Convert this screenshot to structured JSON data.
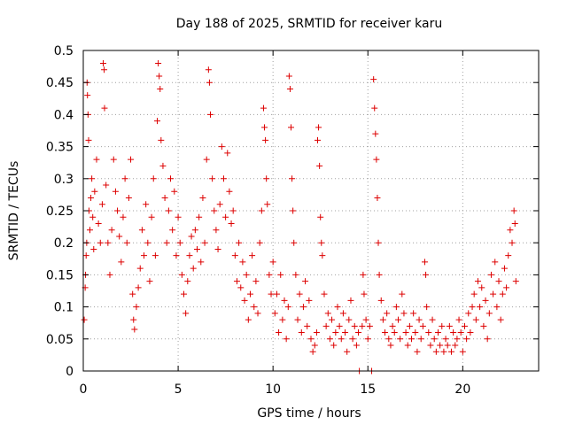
{
  "chart_data": {
    "type": "scatter",
    "title": "Day 188 of 2025, SRMTID for receiver karu",
    "xlabel": "GPS time / hours",
    "ylabel": "SRMTID / TECUs",
    "xlim": [
      0,
      24
    ],
    "ylim": [
      0,
      0.5
    ],
    "xticks": [
      0,
      5,
      10,
      15,
      20
    ],
    "yticks": [
      0,
      0.05,
      0.1,
      0.15,
      0.2,
      0.25,
      0.3,
      0.35,
      0.4,
      0.45,
      0.5
    ],
    "xtick_labels": [
      "0",
      "5",
      "10",
      "15",
      "20"
    ],
    "ytick_labels": [
      "0",
      "0.05",
      "0.1",
      "0.15",
      "0.2",
      "0.25",
      "0.3",
      "0.35",
      "0.4",
      "0.45",
      "0.5"
    ],
    "grid": true,
    "marker": "+",
    "color": "#dd0000",
    "series": [
      {
        "name": "SRMTID",
        "points": [
          [
            0.05,
            0.08
          ],
          [
            0.1,
            0.13
          ],
          [
            0.12,
            0.15
          ],
          [
            0.15,
            0.18
          ],
          [
            0.18,
            0.2
          ],
          [
            0.2,
            0.45
          ],
          [
            0.22,
            0.43
          ],
          [
            0.25,
            0.4
          ],
          [
            0.28,
            0.36
          ],
          [
            0.3,
            0.25
          ],
          [
            0.35,
            0.22
          ],
          [
            0.4,
            0.27
          ],
          [
            0.45,
            0.3
          ],
          [
            0.5,
            0.24
          ],
          [
            0.55,
            0.19
          ],
          [
            0.6,
            0.28
          ],
          [
            0.7,
            0.33
          ],
          [
            0.8,
            0.23
          ],
          [
            0.9,
            0.2
          ],
          [
            1.0,
            0.26
          ],
          [
            1.05,
            0.48
          ],
          [
            1.1,
            0.47
          ],
          [
            1.12,
            0.41
          ],
          [
            1.2,
            0.29
          ],
          [
            1.3,
            0.2
          ],
          [
            1.4,
            0.15
          ],
          [
            1.5,
            0.22
          ],
          [
            1.6,
            0.33
          ],
          [
            1.7,
            0.28
          ],
          [
            1.8,
            0.25
          ],
          [
            1.9,
            0.21
          ],
          [
            2.0,
            0.17
          ],
          [
            2.1,
            0.24
          ],
          [
            2.2,
            0.3
          ],
          [
            2.3,
            0.2
          ],
          [
            2.4,
            0.27
          ],
          [
            2.5,
            0.33
          ],
          [
            2.6,
            0.12
          ],
          [
            2.65,
            0.08
          ],
          [
            2.7,
            0.065
          ],
          [
            2.8,
            0.1
          ],
          [
            2.9,
            0.13
          ],
          [
            3.0,
            0.16
          ],
          [
            3.1,
            0.22
          ],
          [
            3.2,
            0.18
          ],
          [
            3.3,
            0.26
          ],
          [
            3.4,
            0.2
          ],
          [
            3.5,
            0.14
          ],
          [
            3.6,
            0.24
          ],
          [
            3.7,
            0.3
          ],
          [
            3.8,
            0.18
          ],
          [
            3.9,
            0.39
          ],
          [
            3.95,
            0.48
          ],
          [
            4.0,
            0.46
          ],
          [
            4.05,
            0.44
          ],
          [
            4.1,
            0.36
          ],
          [
            4.2,
            0.32
          ],
          [
            4.3,
            0.27
          ],
          [
            4.4,
            0.2
          ],
          [
            4.5,
            0.25
          ],
          [
            4.6,
            0.3
          ],
          [
            4.7,
            0.22
          ],
          [
            4.8,
            0.28
          ],
          [
            4.9,
            0.18
          ],
          [
            5.0,
            0.24
          ],
          [
            5.1,
            0.2
          ],
          [
            5.2,
            0.15
          ],
          [
            5.3,
            0.12
          ],
          [
            5.4,
            0.09
          ],
          [
            5.5,
            0.14
          ],
          [
            5.6,
            0.18
          ],
          [
            5.7,
            0.21
          ],
          [
            5.8,
            0.16
          ],
          [
            5.9,
            0.22
          ],
          [
            6.0,
            0.19
          ],
          [
            6.1,
            0.24
          ],
          [
            6.2,
            0.17
          ],
          [
            6.3,
            0.27
          ],
          [
            6.4,
            0.2
          ],
          [
            6.5,
            0.33
          ],
          [
            6.6,
            0.47
          ],
          [
            6.65,
            0.45
          ],
          [
            6.7,
            0.4
          ],
          [
            6.8,
            0.3
          ],
          [
            6.9,
            0.25
          ],
          [
            7.0,
            0.22
          ],
          [
            7.1,
            0.19
          ],
          [
            7.2,
            0.26
          ],
          [
            7.3,
            0.35
          ],
          [
            7.4,
            0.3
          ],
          [
            7.5,
            0.24
          ],
          [
            7.6,
            0.34
          ],
          [
            7.7,
            0.28
          ],
          [
            7.8,
            0.23
          ],
          [
            7.9,
            0.25
          ],
          [
            8.0,
            0.18
          ],
          [
            8.1,
            0.14
          ],
          [
            8.2,
            0.2
          ],
          [
            8.3,
            0.13
          ],
          [
            8.4,
            0.17
          ],
          [
            8.5,
            0.11
          ],
          [
            8.6,
            0.15
          ],
          [
            8.7,
            0.08
          ],
          [
            8.8,
            0.12
          ],
          [
            8.9,
            0.18
          ],
          [
            9.0,
            0.1
          ],
          [
            9.1,
            0.14
          ],
          [
            9.2,
            0.09
          ],
          [
            9.3,
            0.2
          ],
          [
            9.4,
            0.25
          ],
          [
            9.5,
            0.41
          ],
          [
            9.55,
            0.38
          ],
          [
            9.6,
            0.36
          ],
          [
            9.65,
            0.3
          ],
          [
            9.7,
            0.26
          ],
          [
            9.8,
            0.15
          ],
          [
            9.9,
            0.12
          ],
          [
            10.0,
            0.17
          ],
          [
            10.1,
            0.09
          ],
          [
            10.2,
            0.12
          ],
          [
            10.3,
            0.06
          ],
          [
            10.4,
            0.15
          ],
          [
            10.5,
            0.08
          ],
          [
            10.6,
            0.11
          ],
          [
            10.7,
            0.05
          ],
          [
            10.8,
            0.1
          ],
          [
            10.85,
            0.46
          ],
          [
            10.9,
            0.44
          ],
          [
            10.95,
            0.38
          ],
          [
            11.0,
            0.3
          ],
          [
            11.05,
            0.25
          ],
          [
            11.1,
            0.2
          ],
          [
            11.2,
            0.15
          ],
          [
            11.3,
            0.08
          ],
          [
            11.4,
            0.12
          ],
          [
            11.5,
            0.06
          ],
          [
            11.6,
            0.1
          ],
          [
            11.7,
            0.14
          ],
          [
            11.8,
            0.07
          ],
          [
            11.9,
            0.11
          ],
          [
            12.0,
            0.05
          ],
          [
            12.1,
            0.03
          ],
          [
            12.2,
            0.04
          ],
          [
            12.3,
            0.06
          ],
          [
            12.35,
            0.36
          ],
          [
            12.4,
            0.38
          ],
          [
            12.45,
            0.32
          ],
          [
            12.5,
            0.24
          ],
          [
            12.55,
            0.2
          ],
          [
            12.6,
            0.18
          ],
          [
            12.7,
            0.12
          ],
          [
            12.8,
            0.07
          ],
          [
            12.9,
            0.09
          ],
          [
            13.0,
            0.05
          ],
          [
            13.1,
            0.08
          ],
          [
            13.2,
            0.04
          ],
          [
            13.3,
            0.06
          ],
          [
            13.4,
            0.1
          ],
          [
            13.5,
            0.07
          ],
          [
            13.6,
            0.05
          ],
          [
            13.7,
            0.09
          ],
          [
            13.8,
            0.06
          ],
          [
            13.9,
            0.03
          ],
          [
            14.0,
            0.08
          ],
          [
            14.1,
            0.11
          ],
          [
            14.2,
            0.05
          ],
          [
            14.3,
            0.07
          ],
          [
            14.4,
            0.04
          ],
          [
            14.5,
            0.06
          ],
          [
            14.55,
            0.0
          ],
          [
            14.7,
            0.07
          ],
          [
            14.75,
            0.15
          ],
          [
            14.8,
            0.12
          ],
          [
            14.9,
            0.08
          ],
          [
            15.0,
            0.05
          ],
          [
            15.1,
            0.07
          ],
          [
            15.2,
            0.0
          ],
          [
            15.3,
            0.455
          ],
          [
            15.35,
            0.41
          ],
          [
            15.4,
            0.37
          ],
          [
            15.45,
            0.33
          ],
          [
            15.5,
            0.27
          ],
          [
            15.55,
            0.2
          ],
          [
            15.6,
            0.15
          ],
          [
            15.7,
            0.11
          ],
          [
            15.8,
            0.08
          ],
          [
            15.9,
            0.06
          ],
          [
            16.0,
            0.09
          ],
          [
            16.1,
            0.05
          ],
          [
            16.2,
            0.04
          ],
          [
            16.3,
            0.07
          ],
          [
            16.4,
            0.06
          ],
          [
            16.5,
            0.1
          ],
          [
            16.6,
            0.08
          ],
          [
            16.7,
            0.05
          ],
          [
            16.8,
            0.12
          ],
          [
            16.9,
            0.09
          ],
          [
            17.0,
            0.06
          ],
          [
            17.1,
            0.04
          ],
          [
            17.2,
            0.07
          ],
          [
            17.3,
            0.05
          ],
          [
            17.4,
            0.09
          ],
          [
            17.5,
            0.06
          ],
          [
            17.6,
            0.03
          ],
          [
            17.7,
            0.08
          ],
          [
            17.8,
            0.05
          ],
          [
            17.9,
            0.07
          ],
          [
            18.0,
            0.17
          ],
          [
            18.05,
            0.15
          ],
          [
            18.1,
            0.1
          ],
          [
            18.2,
            0.06
          ],
          [
            18.3,
            0.04
          ],
          [
            18.4,
            0.08
          ],
          [
            18.5,
            0.05
          ],
          [
            18.6,
            0.03
          ],
          [
            18.7,
            0.06
          ],
          [
            18.8,
            0.04
          ],
          [
            18.9,
            0.07
          ],
          [
            19.0,
            0.03
          ],
          [
            19.1,
            0.05
          ],
          [
            19.2,
            0.04
          ],
          [
            19.3,
            0.07
          ],
          [
            19.4,
            0.03
          ],
          [
            19.5,
            0.06
          ],
          [
            19.6,
            0.04
          ],
          [
            19.7,
            0.05
          ],
          [
            19.8,
            0.08
          ],
          [
            19.9,
            0.06
          ],
          [
            20.0,
            0.03
          ],
          [
            20.1,
            0.07
          ],
          [
            20.2,
            0.05
          ],
          [
            20.3,
            0.09
          ],
          [
            20.4,
            0.06
          ],
          [
            20.5,
            0.1
          ],
          [
            20.6,
            0.12
          ],
          [
            20.7,
            0.08
          ],
          [
            20.8,
            0.14
          ],
          [
            20.9,
            0.1
          ],
          [
            21.0,
            0.13
          ],
          [
            21.1,
            0.07
          ],
          [
            21.2,
            0.11
          ],
          [
            21.3,
            0.05
          ],
          [
            21.4,
            0.09
          ],
          [
            21.5,
            0.15
          ],
          [
            21.6,
            0.12
          ],
          [
            21.7,
            0.17
          ],
          [
            21.8,
            0.1
          ],
          [
            21.9,
            0.14
          ],
          [
            22.0,
            0.08
          ],
          [
            22.1,
            0.12
          ],
          [
            22.2,
            0.16
          ],
          [
            22.3,
            0.13
          ],
          [
            22.4,
            0.18
          ],
          [
            22.5,
            0.22
          ],
          [
            22.6,
            0.2
          ],
          [
            22.7,
            0.25
          ],
          [
            22.75,
            0.23
          ],
          [
            22.8,
            0.14
          ]
        ]
      }
    ]
  }
}
